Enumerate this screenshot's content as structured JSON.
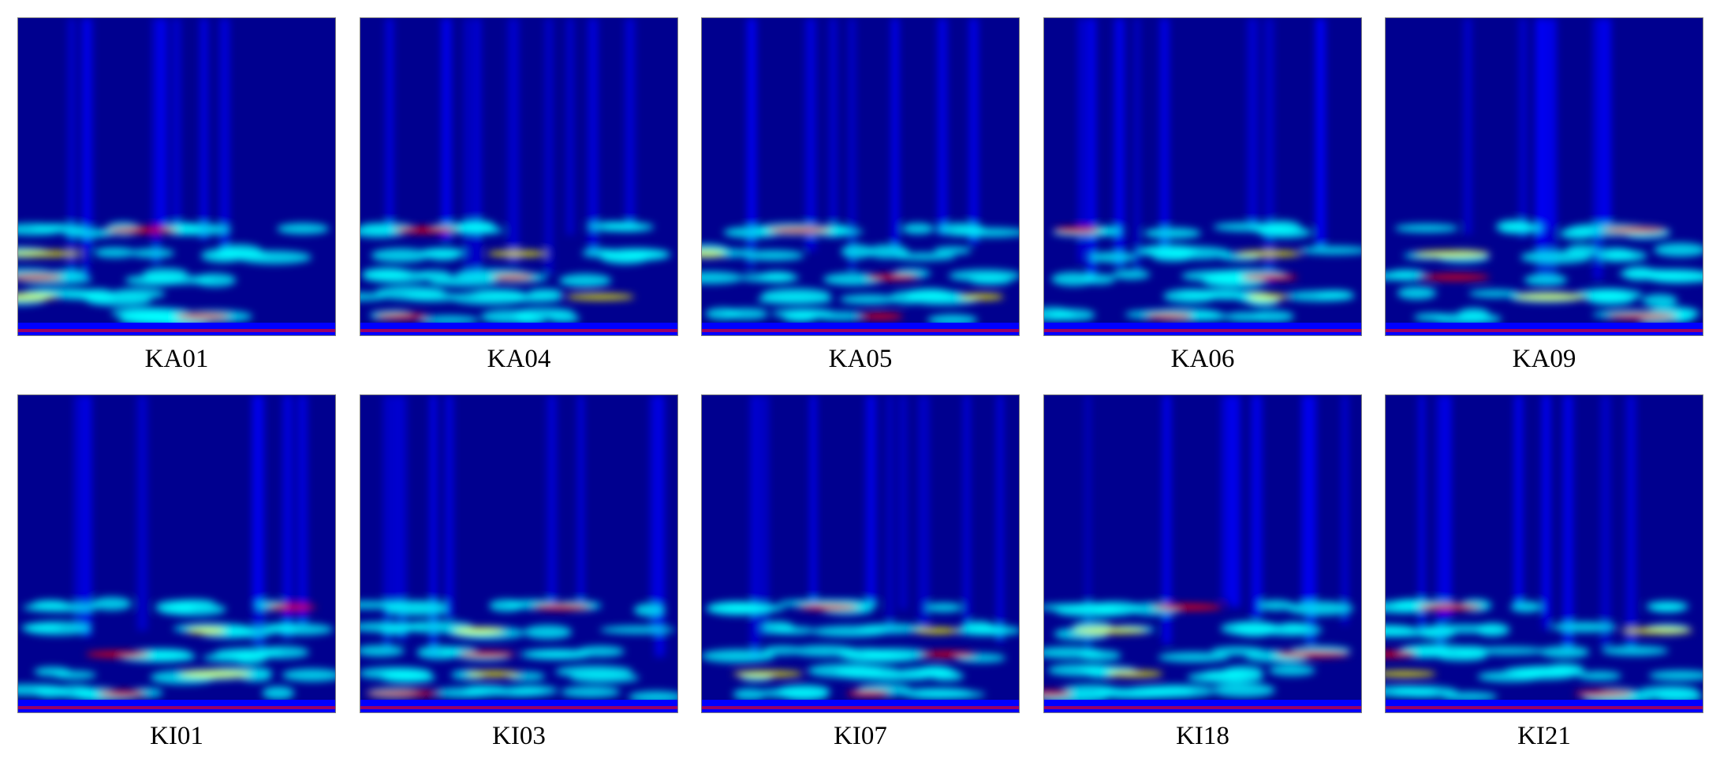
{
  "figure": {
    "panels": [
      {
        "label": "KA01",
        "row": 0,
        "col": 0
      },
      {
        "label": "KA04",
        "row": 0,
        "col": 1
      },
      {
        "label": "KA05",
        "row": 0,
        "col": 2
      },
      {
        "label": "KA06",
        "row": 0,
        "col": 3
      },
      {
        "label": "KA09",
        "row": 0,
        "col": 4
      },
      {
        "label": "KI01",
        "row": 1,
        "col": 0
      },
      {
        "label": "KI03",
        "row": 1,
        "col": 1
      },
      {
        "label": "KI07",
        "row": 1,
        "col": 2
      },
      {
        "label": "KI18",
        "row": 1,
        "col": 3
      },
      {
        "label": "KI21",
        "row": 1,
        "col": 4
      }
    ],
    "colormap": [
      "#00008f",
      "#0000ff",
      "#00ffff",
      "#ffff00",
      "#ff0000",
      "#800000"
    ]
  }
}
